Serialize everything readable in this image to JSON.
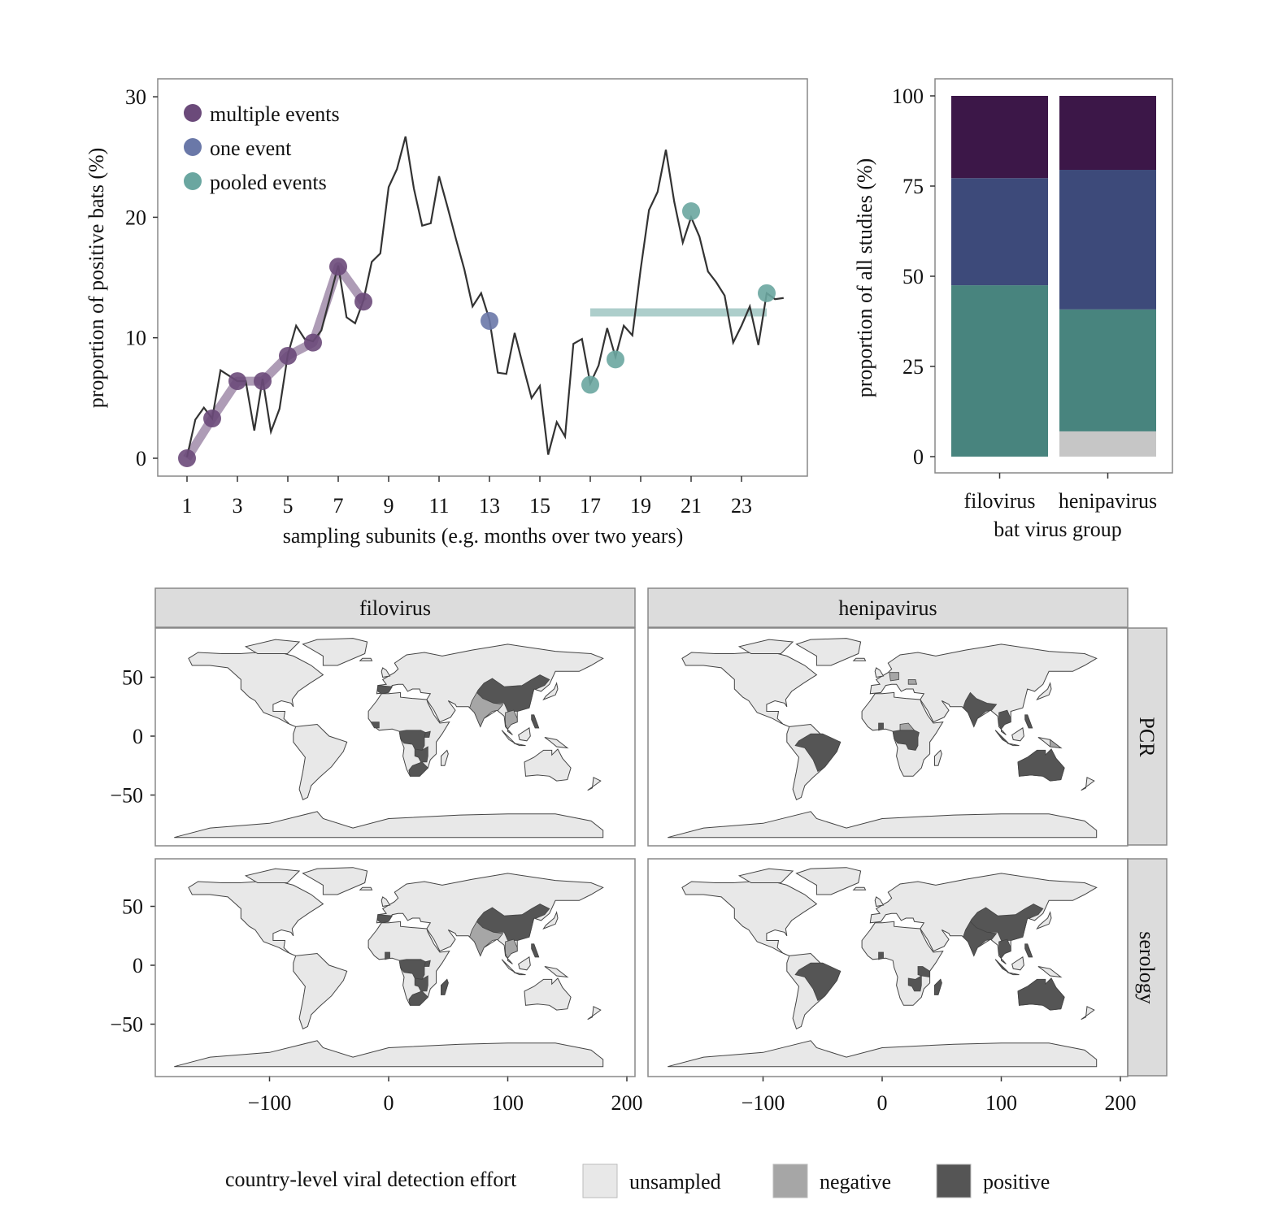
{
  "chart_data": [
    {
      "type": "line",
      "ylabel": "proportion of positive bats (%)",
      "xlabel": "sampling subunits (e.g. months over two years)",
      "xlim": [
        0,
        26
      ],
      "ylim": [
        -1,
        31
      ],
      "xticks": [
        1,
        3,
        5,
        7,
        9,
        11,
        13,
        15,
        17,
        19,
        21,
        23
      ],
      "yticks": [
        0,
        10,
        20,
        30
      ],
      "grid": false,
      "legend_placement": "top-left",
      "legend": [
        {
          "label": "multiple events",
          "color": "#6b4a7a"
        },
        {
          "label": "one event",
          "color": "#6a78a8"
        },
        {
          "label": "pooled events",
          "color": "#6aa6a0"
        }
      ],
      "underlying_series": {
        "color": "#333333",
        "x": [
          1,
          1.33,
          1.67,
          2,
          2.33,
          3,
          3.33,
          3.67,
          4,
          4.33,
          4.67,
          5,
          5.33,
          5.67,
          6,
          6.33,
          7,
          7.33,
          7.67,
          8,
          8.33,
          8.67,
          9,
          9.33,
          9.67,
          10,
          10.33,
          10.67,
          11,
          11.33,
          11.67,
          12,
          12.33,
          12.67,
          13,
          13.33,
          13.67,
          14,
          14.33,
          14.67,
          15,
          15.33,
          15.67,
          16,
          16.33,
          16.67,
          17,
          17.33,
          17.67,
          18,
          18.33,
          18.67,
          19,
          19.33,
          19.67,
          20,
          20.33,
          20.67,
          21,
          21.33,
          21.67,
          22,
          22.33,
          22.67,
          23,
          23.33,
          23.67,
          24,
          24.33,
          24.67
        ],
        "y": [
          0.1,
          3.2,
          4.2,
          3.3,
          7.3,
          6.4,
          6.4,
          2.3,
          6.6,
          2.2,
          4.1,
          8.6,
          11.0,
          9.9,
          9.7,
          10.6,
          16.0,
          11.7,
          11.2,
          13.1,
          16.3,
          17.0,
          22.5,
          24.0,
          26.7,
          22.4,
          19.3,
          19.5,
          23.4,
          20.9,
          18.2,
          15.7,
          12.6,
          13.7,
          11.5,
          7.1,
          7.0,
          10.4,
          7.7,
          5.0,
          6.0,
          0.3,
          3.0,
          1.8,
          9.5,
          9.9,
          6.2,
          7.7,
          10.8,
          8.4,
          11.0,
          10.2,
          15.7,
          20.6,
          22.1,
          25.6,
          21.3,
          17.9,
          20.0,
          18.4,
          15.5,
          14.6,
          13.5,
          9.6,
          11.0,
          12.6,
          9.4,
          13.7,
          13.2,
          13.3
        ]
      },
      "multiple_events": {
        "x": [
          1,
          2,
          3,
          4,
          5,
          6,
          7,
          8
        ],
        "y": [
          0,
          3.3,
          6.4,
          6.4,
          8.5,
          9.6,
          15.9,
          13.0
        ]
      },
      "one_event": {
        "x": [
          13
        ],
        "y": [
          11.4
        ]
      },
      "pooled_events": {
        "x": [
          17,
          18,
          21,
          24
        ],
        "y": [
          6.1,
          8.2,
          20.5,
          13.7
        ],
        "pooled_mean": {
          "x_from": 17,
          "x_to": 24,
          "y": 12.1
        }
      }
    },
    {
      "type": "bar",
      "stacked": true,
      "ylabel": "proportion of all studies (%)",
      "xlabel": "bat virus group",
      "categories": [
        "filovirus",
        "henipavirus"
      ],
      "ylim": [
        0,
        100
      ],
      "yticks": [
        0,
        25,
        50,
        75,
        100
      ],
      "series": [
        {
          "color": "#c6c6c6",
          "values": [
            0,
            7
          ]
        },
        {
          "color": "#48847e",
          "values": [
            47.5,
            33.8
          ]
        },
        {
          "color": "#3d4a7a",
          "values": [
            29.7,
            38.7
          ]
        },
        {
          "color": "#3c1748",
          "values": [
            22.8,
            20.5
          ]
        }
      ]
    },
    {
      "type": "map",
      "columns": [
        "filovirus",
        "henipavirus"
      ],
      "rows": [
        "PCR",
        "serology"
      ],
      "xticks": [
        -100,
        0,
        100,
        200
      ],
      "yticks": [
        50,
        0,
        -50
      ],
      "legend_title": "country-level viral detection effort",
      "legend": [
        {
          "key": "unsampled",
          "label": "unsampled",
          "color": "#e8e8e8"
        },
        {
          "key": "negative",
          "label": "negative",
          "color": "#a6a6a6"
        },
        {
          "key": "positive",
          "label": "positive",
          "color": "#555555"
        }
      ],
      "panels": [
        {
          "column": "filovirus",
          "row": "PCR",
          "regions": {
            "CHN": "positive",
            "IND": "negative",
            "SEA": "negative",
            "PHL": "positive",
            "ESP": "positive",
            "GIN": "positive",
            "CEN": "positive",
            "UGA": "positive",
            "ZMB": "positive",
            "ZAF": "positive"
          }
        },
        {
          "column": "henipavirus",
          "row": "PCR",
          "regions": {
            "BRA": "positive",
            "IND": "positive",
            "SEA": "positive",
            "IDN": "positive",
            "PHL": "positive",
            "AUS": "positive",
            "CEN": "positive",
            "GHA": "positive",
            "CAF": "negative",
            "DEU": "negative",
            "ROU": "negative",
            "PNG": "negative"
          }
        },
        {
          "column": "filovirus",
          "row": "serology",
          "regions": {
            "CHN": "positive",
            "IND": "negative",
            "SEA": "negative",
            "PHL": "positive",
            "ESP": "positive",
            "GHA": "positive",
            "CEN": "positive",
            "UGA": "positive",
            "ZMB": "positive",
            "ZAF": "positive",
            "MDG": "positive"
          }
        },
        {
          "column": "henipavirus",
          "row": "serology",
          "regions": {
            "CHN": "positive",
            "IND": "positive",
            "SEA": "positive",
            "IDN": "positive",
            "PHL": "positive",
            "AUS": "positive",
            "BRA": "positive",
            "TZA": "positive",
            "ZMB": "positive",
            "MDG": "positive",
            "GHA": "positive"
          }
        }
      ]
    }
  ]
}
